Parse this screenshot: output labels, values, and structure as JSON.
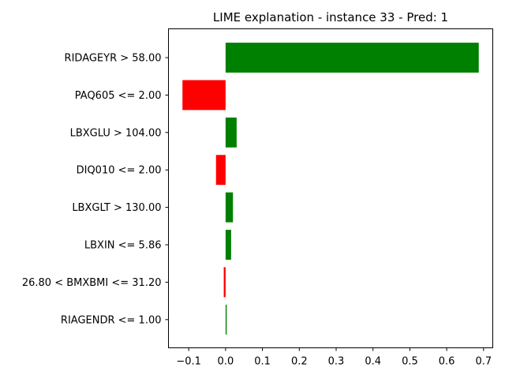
{
  "chart_data": {
    "type": "bar",
    "orientation": "horizontal",
    "title": "LIME explanation - instance 33 - Pred: 1",
    "xlabel": "",
    "ylabel": "",
    "xlim": [
      -0.155,
      0.725
    ],
    "xticks": [
      -0.1,
      0.0,
      0.1,
      0.2,
      0.3,
      0.4,
      0.5,
      0.6,
      0.7
    ],
    "xtick_labels": [
      "−0.1",
      "0.0",
      "0.1",
      "0.2",
      "0.3",
      "0.4",
      "0.5",
      "0.6",
      "0.7"
    ],
    "grid": false,
    "legend": "none",
    "colors": {
      "positive": "#008000",
      "negative": "#ff0000"
    },
    "categories": [
      "RIDAGEYR > 58.00",
      "PAQ605 <= 2.00",
      "LBXGLU > 104.00",
      "DIQ010 <= 2.00",
      "LBXGLT > 130.00",
      "LBXIN <= 5.86",
      "26.80 < BMXBMI <= 31.20",
      "RIAGENDR <= 1.00"
    ],
    "values": [
      0.687,
      -0.117,
      0.03,
      -0.026,
      0.02,
      0.015,
      -0.005,
      0.003
    ]
  }
}
